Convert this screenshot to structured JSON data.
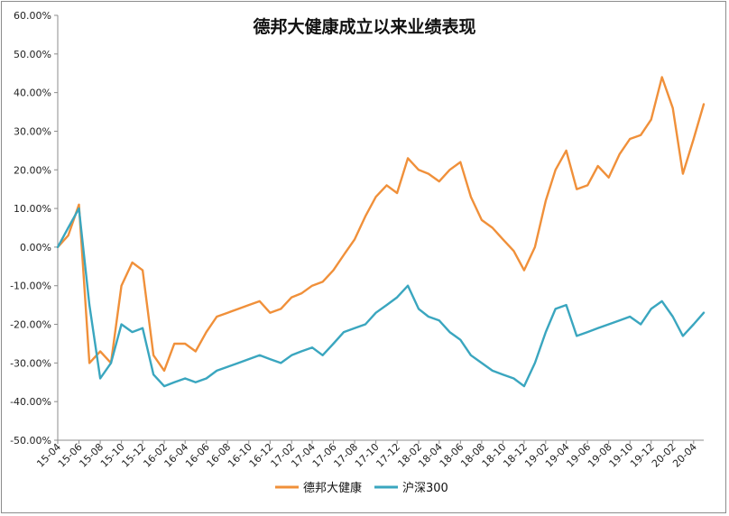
{
  "chart_data": {
    "type": "line",
    "title": "德邦大健康成立以来业绩表现",
    "xlabel": "",
    "ylabel": "",
    "ylim": [
      -0.5,
      0.6
    ],
    "y_ticks": [
      "60.00%",
      "50.00%",
      "40.00%",
      "30.00%",
      "20.00%",
      "10.00%",
      "0.00%",
      "-10.00%",
      "-20.00%",
      "-30.00%",
      "-40.00%",
      "-50.00%"
    ],
    "x_ticks": [
      "15-04",
      "15-06",
      "15-08",
      "15-10",
      "15-12",
      "16-02",
      "16-04",
      "16-06",
      "16-08",
      "16-10",
      "16-12",
      "17-02",
      "17-04",
      "17-06",
      "17-08",
      "17-10",
      "17-12",
      "18-02",
      "18-04",
      "18-06",
      "18-08",
      "18-10",
      "18-12",
      "19-02",
      "19-04",
      "19-06",
      "19-08",
      "19-10",
      "19-12",
      "20-02",
      "20-04"
    ],
    "grid": false,
    "legend": "bottom-center",
    "x": [
      "2015-04-01",
      "2015-05-01",
      "2015-06-01",
      "2015-07-01",
      "2015-08-01",
      "2015-09-01",
      "2015-10-01",
      "2015-11-01",
      "2015-12-01",
      "2016-01-01",
      "2016-02-01",
      "2016-03-01",
      "2016-04-01",
      "2016-05-01",
      "2016-06-01",
      "2016-07-01",
      "2016-08-01",
      "2016-09-01",
      "2016-10-01",
      "2016-11-01",
      "2016-12-01",
      "2017-01-01",
      "2017-02-01",
      "2017-03-01",
      "2017-04-01",
      "2017-05-01",
      "2017-06-01",
      "2017-07-01",
      "2017-08-01",
      "2017-09-01",
      "2017-10-01",
      "2017-11-01",
      "2017-12-01",
      "2018-01-01",
      "2018-02-01",
      "2018-03-01",
      "2018-04-01",
      "2018-05-01",
      "2018-06-01",
      "2018-07-01",
      "2018-08-01",
      "2018-09-01",
      "2018-10-01",
      "2018-11-01",
      "2018-12-01",
      "2019-01-01",
      "2019-02-01",
      "2019-03-01",
      "2019-04-01",
      "2019-05-01",
      "2019-06-01",
      "2019-07-01",
      "2019-08-01",
      "2019-09-01",
      "2019-10-01",
      "2019-11-01",
      "2019-12-01",
      "2020-01-01",
      "2020-02-01",
      "2020-03-01",
      "2020-04-01",
      "2020-04-30"
    ],
    "series": [
      {
        "name": "德邦大健康",
        "color": "#f0903a",
        "values": [
          0.0,
          0.03,
          0.11,
          -0.3,
          -0.27,
          -0.3,
          -0.1,
          -0.04,
          -0.06,
          -0.28,
          -0.32,
          -0.25,
          -0.25,
          -0.27,
          -0.22,
          -0.18,
          -0.17,
          -0.16,
          -0.15,
          -0.14,
          -0.17,
          -0.16,
          -0.13,
          -0.12,
          -0.1,
          -0.09,
          -0.06,
          -0.02,
          0.02,
          0.08,
          0.13,
          0.16,
          0.14,
          0.23,
          0.2,
          0.19,
          0.17,
          0.2,
          0.22,
          0.13,
          0.07,
          0.05,
          0.02,
          -0.01,
          -0.06,
          0.0,
          0.12,
          0.2,
          0.25,
          0.15,
          0.16,
          0.21,
          0.18,
          0.24,
          0.28,
          0.29,
          0.33,
          0.44,
          0.36,
          0.19,
          0.28,
          0.37
        ]
      },
      {
        "name": "沪深300",
        "color": "#3aa6bf",
        "values": [
          0.0,
          0.05,
          0.1,
          -0.15,
          -0.34,
          -0.3,
          -0.2,
          -0.22,
          -0.21,
          -0.33,
          -0.36,
          -0.35,
          -0.34,
          -0.35,
          -0.34,
          -0.32,
          -0.31,
          -0.3,
          -0.29,
          -0.28,
          -0.29,
          -0.3,
          -0.28,
          -0.27,
          -0.26,
          -0.28,
          -0.25,
          -0.22,
          -0.21,
          -0.2,
          -0.17,
          -0.15,
          -0.13,
          -0.1,
          -0.16,
          -0.18,
          -0.19,
          -0.22,
          -0.24,
          -0.28,
          -0.3,
          -0.32,
          -0.33,
          -0.34,
          -0.36,
          -0.3,
          -0.22,
          -0.16,
          -0.15,
          -0.23,
          -0.22,
          -0.21,
          -0.2,
          -0.19,
          -0.18,
          -0.2,
          -0.16,
          -0.14,
          -0.18,
          -0.23,
          -0.2,
          -0.17
        ]
      }
    ]
  }
}
